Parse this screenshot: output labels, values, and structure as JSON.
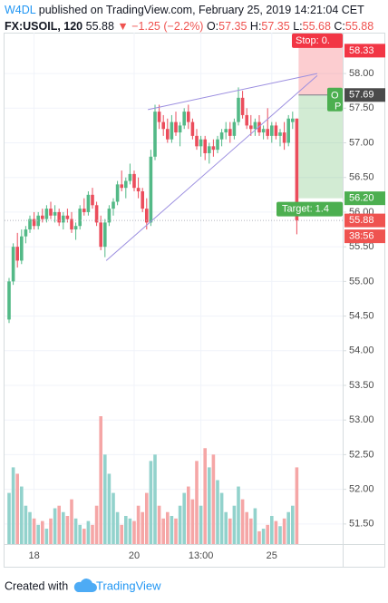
{
  "header": {
    "author": "W4DL",
    "published": "published on TradingView.com, February 25, 2019 14:21:04 CET",
    "symbol": "FX:USOIL, 120",
    "price": "55.88",
    "arrow": "▼",
    "change": "−1.25 (−2.2%)",
    "o_label": "O:",
    "o": "57.35",
    "h_label": "H:",
    "h": "57.35",
    "l_label": "L:",
    "l": "55.68",
    "c_label": "C:",
    "c": "55.88"
  },
  "chart_data": {
    "type": "candlestick",
    "categories": [
      null,
      null,
      null,
      null,
      null,
      null,
      "18",
      null,
      null,
      null,
      null,
      null,
      null,
      null,
      null,
      null,
      null,
      null,
      null,
      null,
      null,
      null,
      null,
      null,
      null,
      null,
      null,
      null,
      null,
      null,
      "20",
      null,
      null,
      null,
      null,
      null,
      null,
      null,
      null,
      null,
      null,
      null,
      null,
      null,
      null,
      null,
      "13:00",
      null,
      null,
      null,
      null,
      null,
      null,
      null,
      null,
      null,
      null,
      null,
      null,
      null,
      null,
      null,
      null,
      "25",
      null,
      null,
      null,
      null,
      null,
      null
    ],
    "open": [
      54.45,
      55.0,
      55.5,
      55.3,
      55.65,
      55.75,
      55.9,
      55.8,
      55.95,
      55.9,
      56.05,
      55.95,
      56.0,
      55.85,
      55.95,
      55.9,
      55.75,
      55.8,
      56.05,
      56.0,
      56.25,
      56.1,
      55.85,
      55.5,
      55.85,
      56.05,
      56.15,
      56.4,
      56.35,
      56.45,
      56.55,
      56.35,
      56.3,
      56.05,
      55.85,
      56.8,
      57.45,
      57.3,
      57.2,
      57.05,
      57.3,
      57.15,
      57.25,
      57.45,
      57.3,
      57.1,
      56.95,
      57.05,
      56.85,
      56.95,
      56.9,
      57.05,
      57.15,
      57.2,
      57.1,
      57.3,
      57.65,
      57.4,
      57.25,
      57.2,
      57.3,
      57.15,
      57.2,
      57.1,
      57.25,
      57.1,
      57.15,
      57.0,
      57.3,
      57.35
    ],
    "high": [
      55.05,
      55.55,
      55.7,
      55.75,
      55.8,
      55.95,
      56.0,
      56.0,
      56.05,
      56.1,
      56.15,
      56.1,
      56.05,
      56.0,
      56.05,
      56.0,
      55.85,
      56.1,
      56.2,
      56.3,
      56.35,
      56.15,
      55.95,
      55.9,
      56.1,
      56.2,
      56.45,
      56.6,
      56.5,
      56.7,
      56.6,
      56.5,
      56.35,
      56.2,
      56.9,
      57.55,
      57.55,
      57.4,
      57.35,
      57.4,
      57.45,
      57.3,
      57.5,
      57.55,
      57.35,
      57.2,
      57.1,
      57.1,
      57.0,
      57.05,
      57.1,
      57.2,
      57.3,
      57.3,
      57.35,
      57.8,
      57.75,
      57.5,
      57.4,
      57.35,
      57.4,
      57.25,
      57.5,
      57.3,
      57.3,
      57.2,
      57.3,
      57.4,
      57.45,
      57.35
    ],
    "low": [
      54.4,
      54.95,
      55.2,
      55.25,
      55.55,
      55.7,
      55.75,
      55.75,
      55.85,
      55.85,
      55.9,
      55.85,
      55.8,
      55.75,
      55.85,
      55.7,
      55.6,
      55.75,
      55.95,
      55.95,
      56.05,
      55.8,
      55.45,
      55.35,
      55.8,
      55.95,
      56.1,
      56.3,
      56.2,
      56.4,
      56.3,
      56.2,
      56.0,
      55.75,
      55.8,
      56.75,
      57.2,
      57.1,
      57.0,
      57.0,
      57.1,
      56.95,
      57.2,
      57.2,
      57.05,
      56.9,
      56.8,
      56.75,
      56.7,
      56.8,
      56.85,
      56.95,
      57.05,
      57.0,
      57.05,
      57.25,
      57.35,
      57.2,
      57.1,
      57.1,
      57.1,
      57.05,
      57.05,
      57.0,
      57.05,
      56.95,
      56.9,
      56.95,
      57.2,
      55.68
    ],
    "close": [
      55.0,
      55.5,
      55.3,
      55.65,
      55.75,
      55.9,
      55.8,
      55.95,
      55.9,
      56.05,
      55.95,
      56.0,
      55.85,
      55.95,
      55.9,
      55.75,
      55.8,
      56.05,
      56.0,
      56.25,
      56.1,
      55.85,
      55.5,
      55.85,
      56.05,
      56.15,
      56.4,
      56.35,
      56.45,
      56.55,
      56.35,
      56.3,
      56.05,
      55.85,
      56.8,
      57.45,
      57.3,
      57.2,
      57.05,
      57.3,
      57.15,
      57.25,
      57.45,
      57.3,
      57.1,
      56.95,
      57.05,
      56.85,
      56.95,
      56.9,
      57.05,
      57.15,
      57.2,
      57.1,
      57.3,
      57.65,
      57.4,
      57.25,
      57.2,
      57.3,
      57.15,
      57.2,
      57.1,
      57.25,
      57.1,
      57.15,
      57.0,
      57.35,
      57.35,
      55.88
    ],
    "volume": [
      40,
      60,
      55,
      45,
      30,
      25,
      20,
      15,
      18,
      12,
      20,
      28,
      30,
      25,
      22,
      35,
      20,
      15,
      12,
      18,
      15,
      30,
      100,
      70,
      55,
      40,
      25,
      15,
      22,
      20,
      18,
      30,
      25,
      40,
      65,
      70,
      30,
      20,
      25,
      22,
      20,
      30,
      40,
      45,
      35,
      65,
      30,
      75,
      60,
      70,
      50,
      40,
      25,
      20,
      30,
      45,
      35,
      25,
      20,
      28,
      10,
      12,
      15,
      22,
      18,
      14,
      20,
      25,
      30,
      60
    ],
    "up_color": "#53b987",
    "down_color": "#eb4d5c",
    "volume_up_color": "#92d2cc",
    "volume_down_color": "#f5a6a6",
    "ylim": [
      51.21,
      58.59
    ],
    "yticks": [
      {
        "value": 51.5,
        "label": "51.50"
      },
      {
        "value": 52,
        "label": "52.00"
      },
      {
        "value": 52.5,
        "label": "52.50"
      },
      {
        "value": 53,
        "label": "53.00"
      },
      {
        "value": 53.5,
        "label": "53.50"
      },
      {
        "value": 54,
        "label": "54.00"
      },
      {
        "value": 54.5,
        "label": "54.50"
      },
      {
        "value": 55,
        "label": "55.00"
      },
      {
        "value": 55.5,
        "label": "55.50"
      },
      {
        "value": 56,
        "label": "56.00"
      },
      {
        "value": 56.5,
        "label": "56.50"
      },
      {
        "value": 57,
        "label": "57.00"
      },
      {
        "value": 57.5,
        "label": "57.50"
      },
      {
        "value": 58,
        "label": "58.00"
      }
    ],
    "grid": true,
    "trendlines": [
      {
        "x": [
          33.3,
          73.9
        ],
        "y": [
          57.48,
          58.0
        ],
        "color": "#9c8fe0"
      },
      {
        "x": [
          23.3,
          73.9
        ],
        "y": [
          55.3,
          57.97
        ],
        "color": "#9c8fe0"
      }
    ],
    "position": {
      "stop": {
        "value": 58.33,
        "label": "58.33",
        "color": "#f23645"
      },
      "entry": {
        "value": 57.69,
        "label": "57.69",
        "color": "#4a4a4a"
      },
      "target": {
        "value": 56.2,
        "label": "56.20",
        "color": "#4caf50"
      },
      "stop_text": "Stop: 0.",
      "target_text": "Target: 1.4",
      "open_text": "O",
      "p_text": "P"
    },
    "last_price": {
      "value": 55.88,
      "label": "55.88",
      "color": "#ef5350"
    },
    "countdown": "38:56"
  },
  "footer": {
    "created": "Created with",
    "brand": "TradingView"
  }
}
